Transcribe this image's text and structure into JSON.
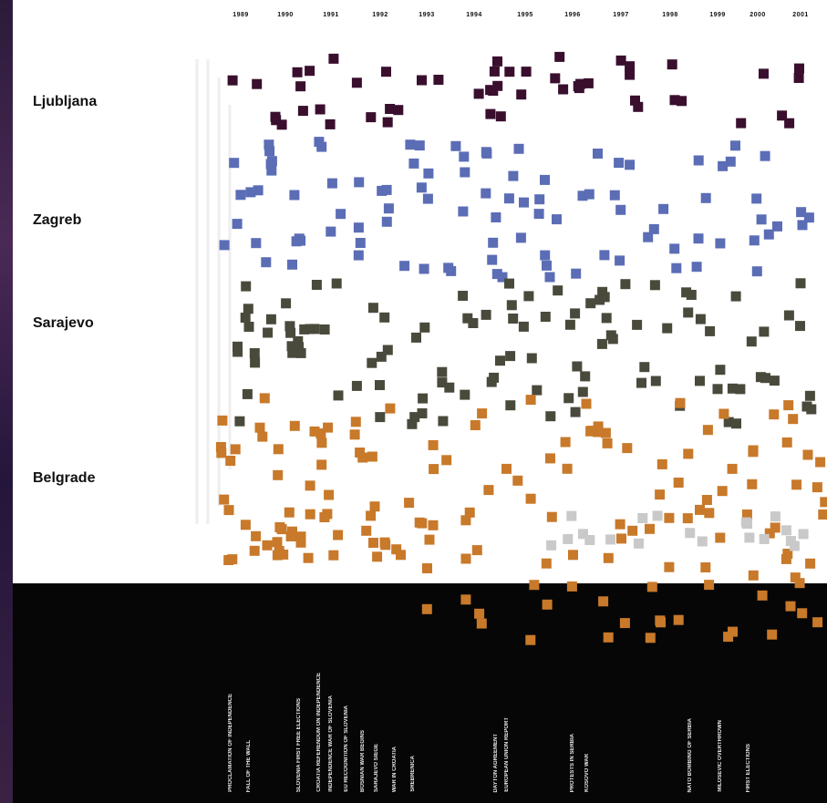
{
  "chart_data": {
    "type": "scatter",
    "title": "",
    "years": [
      "1989",
      "1990",
      "1991",
      "1992",
      "1993",
      "1994",
      "1995",
      "1996",
      "1997",
      "1998",
      "1999",
      "2000",
      "2001"
    ],
    "cities": [
      "Ljubljana",
      "Zagreb",
      "Sarajevo",
      "Belgrade"
    ],
    "colors": {
      "Ljubljana": "#3a0f2e",
      "Zagreb": "#5b6db5",
      "Sarajevo": "#4a4a3c",
      "Belgrade": "#c8792a",
      "Other": "#c9c9c9"
    },
    "series": [
      {
        "city": "Ljubljana",
        "count": 52
      },
      {
        "city": "Zagreb",
        "count": 98
      },
      {
        "city": "Sarajevo",
        "count": 112
      },
      {
        "city": "Belgrade",
        "count": 160
      }
    ]
  },
  "events": [
    "PROCLAMATION OF INDEPENDENCE",
    "FALL OF THE WALL",
    "SLOVENIA FIRST FREE ELECTIONS",
    "CROATIA REFERENDUM ON INDEPENDENCE",
    "INDEPENDENCE WAR OF SLOVENIA",
    "EU RECOGNITION OF SLOVENIA",
    "BOSNIAN WAR BEGINS",
    "SARAJEVO SIEGE",
    "WAR IN CROATIA",
    "SREBRENICA",
    "DAYTON AGREEMENT",
    "EUROPEAN UNION REPORT",
    "PROTESTS IN SERBIA",
    "KOSOVO WAR",
    "NATO BOMBING OF SERBIA",
    "MILOSEVIC OVERTHROWN",
    "FIRST ELECTIONS"
  ]
}
